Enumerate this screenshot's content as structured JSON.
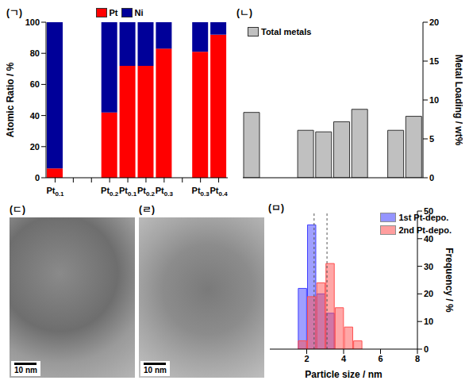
{
  "chart_data": [
    {
      "type": "bar",
      "title": "(ㄱ)",
      "stacked": true,
      "categories": [
        "Pt0.1",
        null,
        null,
        "Pt0.2",
        "Pt0.1",
        "Pt0.2",
        "Pt0.3",
        null,
        "Pt0.3",
        "Pt0.4"
      ],
      "series": [
        {
          "name": "Pt",
          "color": "#ff0000",
          "values": [
            6,
            null,
            null,
            42,
            72,
            72,
            83,
            null,
            81,
            92
          ]
        },
        {
          "name": "Ni",
          "color": "#000099",
          "values": [
            94,
            null,
            null,
            58,
            28,
            28,
            17,
            null,
            19,
            8
          ]
        }
      ],
      "y_label": "Atomic Ratio / %",
      "ylim": [
        0,
        100
      ],
      "yticks": [
        0,
        20,
        40,
        60,
        80,
        100
      ],
      "legend": "top"
    },
    {
      "type": "bar",
      "title": "(ㄴ)",
      "categories": [
        null,
        null,
        null,
        null,
        null,
        null,
        null,
        null,
        null,
        null
      ],
      "series": [
        {
          "name": "Total metals",
          "color": "#c0c0c0",
          "values": [
            8.4,
            null,
            null,
            6.1,
            5.9,
            7.2,
            8.8,
            null,
            6.1,
            7.9
          ]
        }
      ],
      "y_label": "Metal Loading / wt%",
      "ylim": [
        0,
        20
      ],
      "yticks": [
        0,
        5,
        10,
        15,
        20
      ],
      "legend": "upper left",
      "tick_labels": "y"
    },
    {
      "type": "histogram",
      "title": "(ㅁ)",
      "bins": [
        1.5,
        2,
        2.5,
        3,
        3.5,
        4,
        4.5,
        5
      ],
      "series": [
        {
          "name": "1st Pt-depo.",
          "color": "#4040ff",
          "values": [
            22,
            45,
            20,
            13,
            0,
            0,
            0
          ]
        },
        {
          "name": "2nd Pt-depo.",
          "color": "#ff5050",
          "values": [
            3,
            19,
            24,
            31,
            15,
            8,
            3
          ]
        }
      ],
      "x_label": "Particle size / nm",
      "y_label": "Frequency / %",
      "xlim": [
        0,
        8
      ],
      "xticks": [
        0,
        2,
        4,
        6,
        8
      ],
      "ylim": [
        0,
        50
      ],
      "yticks": [
        0,
        10,
        20,
        30,
        40,
        50
      ],
      "mean_sizes": [
        2.4,
        3.1
      ],
      "legend": "upper right"
    }
  ],
  "images": [
    {
      "title": "(ㄷ)",
      "scale_bar": "10 nm"
    },
    {
      "title": "(ㄹ)",
      "scale_bar": "10 nm"
    }
  ]
}
